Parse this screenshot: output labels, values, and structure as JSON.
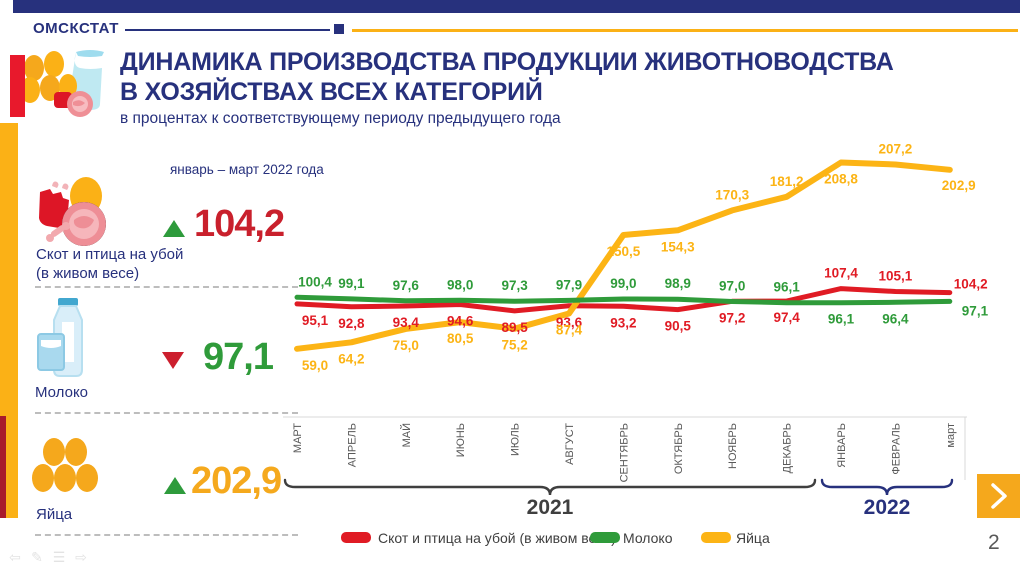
{
  "header": {
    "brand": "ОМСКСТАТ"
  },
  "title": {
    "line1": "ДИНАМИКА ПРОИЗВОДСТВА ПРОДУКЦИИ ЖИВОТНОВОДСТВА",
    "line2": "В ХОЗЯЙСТВАХ ВСЕХ КАТЕГОРИЙ",
    "subtitle": "в процентах к соответствующему периоду предыдущего года"
  },
  "period_note": "январь – март 2022 года",
  "kpis": [
    {
      "id": "meat",
      "label_line1": "Скот и птица на убой",
      "label_line2": "(в живом весе)",
      "value": "104,2",
      "direction": "up",
      "value_color": "#c9202c"
    },
    {
      "id": "milk",
      "label_line1": "Молоко",
      "value": "97,1",
      "direction": "down",
      "value_color": "#2f9b3a"
    },
    {
      "id": "eggs",
      "label_line1": "Яйца",
      "value": "202,9",
      "direction": "up",
      "value_color": "#f5a91d"
    }
  ],
  "chart_data": {
    "type": "line",
    "categories": [
      "МАРТ",
      "АПРЕЛЬ",
      "МАЙ",
      "ИЮНЬ",
      "ИЮЛЬ",
      "АВГУСТ",
      "СЕНТЯБРЬ",
      "ОКТЯБРЬ",
      "НОЯБРЬ",
      "ДЕКАБРЬ",
      "ЯНВАРЬ",
      "ФЕВРАЛЬ",
      "март"
    ],
    "series": [
      {
        "name": "Скот и птица на убой (в живом весе)",
        "color": "#e01b24",
        "values": [
          95.1,
          92.8,
          93.4,
          94.6,
          89.5,
          93.6,
          93.2,
          90.5,
          97.2,
          97.4,
          107.4,
          105.1,
          104.2
        ]
      },
      {
        "name": "Молоко",
        "color": "#2f9b3a",
        "values": [
          100.4,
          99.1,
          97.6,
          98.0,
          97.3,
          97.9,
          99.0,
          98.9,
          97.0,
          96.1,
          96.1,
          96.4,
          97.1
        ]
      },
      {
        "name": "Яйца",
        "color": "#fcb415",
        "values": [
          59.0,
          64.2,
          75.0,
          80.5,
          75.2,
          87.4,
          150.5,
          154.3,
          170.3,
          181.2,
          208.8,
          207.2,
          202.9
        ]
      }
    ],
    "year_groups": [
      {
        "label": "2021",
        "from": 0,
        "to": 9
      },
      {
        "label": "2022",
        "from": 10,
        "to": 12
      }
    ],
    "ylabel": "в процентах к соответствующему периоду предыдущего года",
    "grid": false,
    "legend_position": "bottom",
    "value_format": "comma-decimal"
  },
  "footer": {
    "page_number": "2"
  },
  "colors": {
    "accent_blue": "#27317d",
    "accent_orange": "#fbb116",
    "accent_red": "#e8192c",
    "bracket_2021": "#3f3f3f",
    "bracket_2022": "#27317d"
  }
}
